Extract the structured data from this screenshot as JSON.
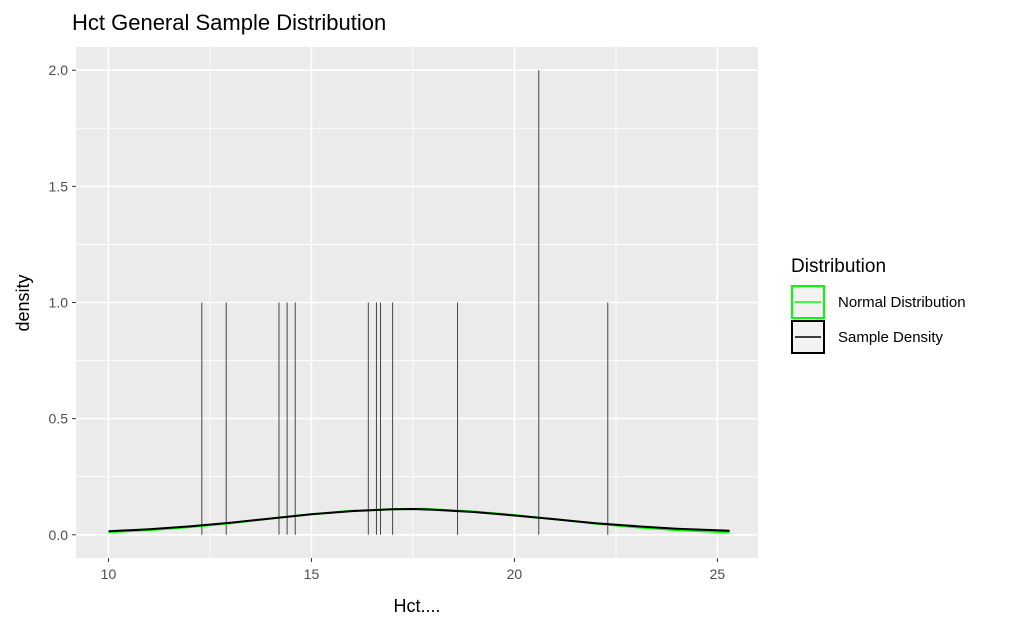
{
  "chart_data": {
    "type": "line",
    "title": "Hct General Sample Distribution",
    "xlabel": "Hct....",
    "ylabel": "density",
    "xlim": [
      9.2,
      26.0
    ],
    "ylim": [
      -0.1,
      2.1
    ],
    "x_ticks": [
      10,
      15,
      20,
      25
    ],
    "x_tick_labels": [
      "10",
      "15",
      "20",
      "25"
    ],
    "y_ticks": [
      0.0,
      0.5,
      1.0,
      1.5,
      2.0
    ],
    "y_tick_labels": [
      "0.0",
      "0.5",
      "1.0",
      "1.5",
      "2.0"
    ],
    "grid": true,
    "panel_background": "#ebebeb",
    "grid_color": "#ffffff",
    "legend": {
      "title": "Distribution",
      "position": "right",
      "entries": [
        {
          "label": "Normal Distribution",
          "color": "#00ff00"
        },
        {
          "label": "Sample Density",
          "color": "#000000"
        }
      ]
    },
    "spikes": {
      "x": [
        12.3,
        12.9,
        14.2,
        14.4,
        14.6,
        16.4,
        16.6,
        16.7,
        17.0,
        18.6,
        20.6,
        22.3
      ],
      "y": [
        1.0,
        1.0,
        1.0,
        1.0,
        1.0,
        1.0,
        1.0,
        1.0,
        1.0,
        1.0,
        2.0,
        1.0
      ],
      "color": "#333333"
    },
    "series": [
      {
        "name": "Normal Distribution",
        "color": "#00ff00",
        "x": [
          10.0,
          11.0,
          12.0,
          13.0,
          14.0,
          15.0,
          16.0,
          17.0,
          17.8,
          19.0,
          20.0,
          21.0,
          22.0,
          23.0,
          24.0,
          25.3
        ],
        "y": [
          0.011,
          0.02,
          0.033,
          0.05,
          0.07,
          0.089,
          0.103,
          0.11,
          0.112,
          0.1,
          0.085,
          0.067,
          0.048,
          0.032,
          0.02,
          0.01
        ]
      },
      {
        "name": "Sample Density",
        "color": "#000000",
        "x": [
          10.0,
          11.0,
          12.0,
          13.0,
          14.0,
          15.0,
          16.0,
          17.0,
          17.5,
          18.0,
          19.0,
          20.0,
          21.0,
          22.0,
          23.0,
          24.0,
          25.3
        ],
        "y": [
          0.015,
          0.024,
          0.036,
          0.052,
          0.07,
          0.088,
          0.102,
          0.11,
          0.111,
          0.108,
          0.098,
          0.083,
          0.067,
          0.05,
          0.037,
          0.026,
          0.017
        ]
      }
    ]
  }
}
